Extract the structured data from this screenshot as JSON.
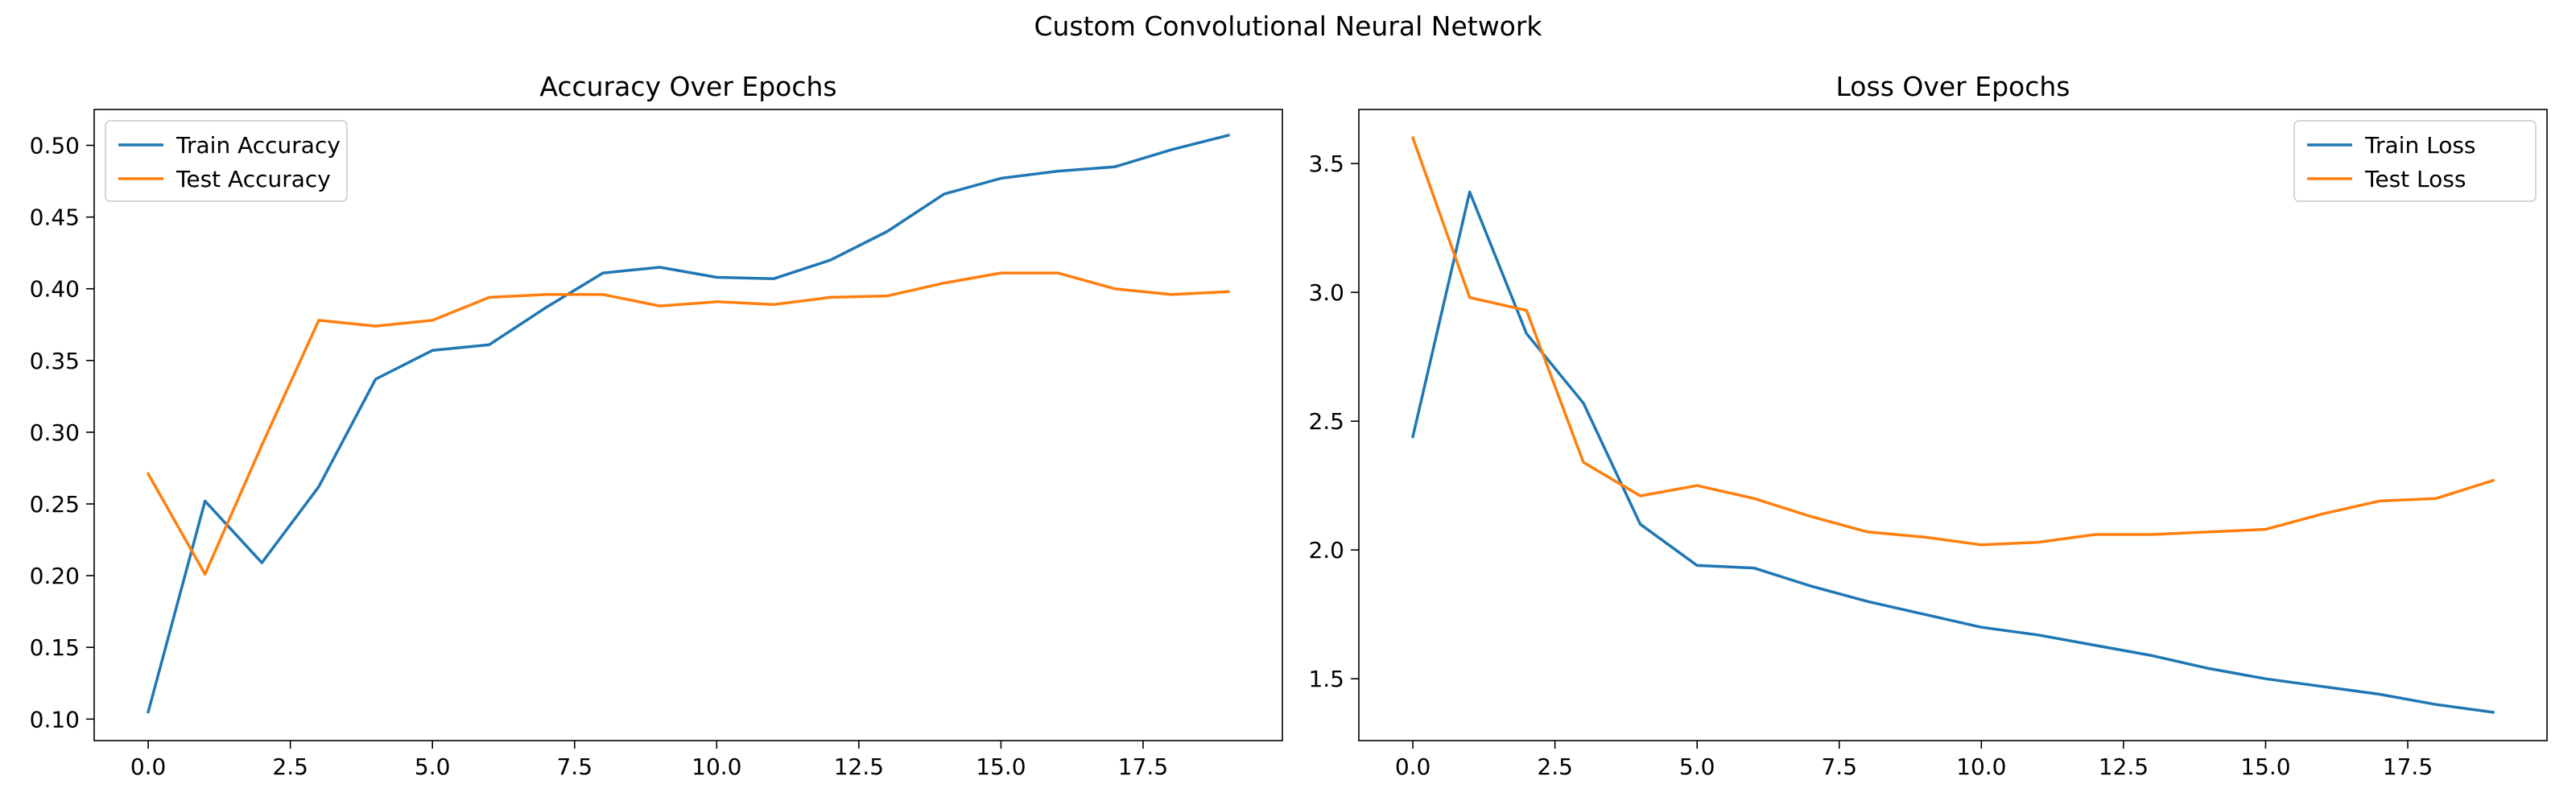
{
  "figure": {
    "title": "Custom Convolutional Neural Network"
  },
  "chart_data": [
    {
      "type": "line",
      "title": "Accuracy Over Epochs",
      "xlabel": "",
      "ylabel": "",
      "xlim": [
        -0.95,
        19.95
      ],
      "ylim": [
        0.085,
        0.525
      ],
      "xticks": [
        0.0,
        2.5,
        5.0,
        7.5,
        10.0,
        12.5,
        15.0,
        17.5
      ],
      "xtick_labels": [
        "0.0",
        "2.5",
        "5.0",
        "7.5",
        "10.0",
        "12.5",
        "15.0",
        "17.5"
      ],
      "yticks": [
        0.1,
        0.15,
        0.2,
        0.25,
        0.3,
        0.35,
        0.4,
        0.45,
        0.5
      ],
      "ytick_labels": [
        "0.10",
        "0.15",
        "0.20",
        "0.25",
        "0.30",
        "0.35",
        "0.40",
        "0.45",
        "0.50"
      ],
      "grid": false,
      "legend_position": "top-left",
      "x": [
        0,
        1,
        2,
        3,
        4,
        5,
        6,
        7,
        8,
        9,
        10,
        11,
        12,
        13,
        14,
        15,
        16,
        17,
        18,
        19
      ],
      "series": [
        {
          "name": "Train Accuracy",
          "color": "#1f77b4",
          "values": [
            0.105,
            0.252,
            0.209,
            0.262,
            0.337,
            0.357,
            0.361,
            0.387,
            0.411,
            0.415,
            0.408,
            0.407,
            0.42,
            0.44,
            0.466,
            0.477,
            0.482,
            0.485,
            0.497,
            0.507
          ]
        },
        {
          "name": "Test Accuracy",
          "color": "#ff7f0e",
          "values": [
            0.271,
            0.201,
            0.291,
            0.378,
            0.374,
            0.378,
            0.394,
            0.396,
            0.396,
            0.388,
            0.391,
            0.389,
            0.394,
            0.395,
            0.404,
            0.411,
            0.411,
            0.4,
            0.396,
            0.398
          ]
        }
      ]
    },
    {
      "type": "line",
      "title": "Loss Over Epochs",
      "xlabel": "",
      "ylabel": "",
      "xlim": [
        -0.95,
        19.95
      ],
      "ylim": [
        1.26,
        3.71
      ],
      "xticks": [
        0.0,
        2.5,
        5.0,
        7.5,
        10.0,
        12.5,
        15.0,
        17.5
      ],
      "xtick_labels": [
        "0.0",
        "2.5",
        "5.0",
        "7.5",
        "10.0",
        "12.5",
        "15.0",
        "17.5"
      ],
      "yticks": [
        1.5,
        2.0,
        2.5,
        3.0,
        3.5
      ],
      "ytick_labels": [
        "1.5",
        "2.0",
        "2.5",
        "3.0",
        "3.5"
      ],
      "grid": false,
      "legend_position": "top-right",
      "x": [
        0,
        1,
        2,
        3,
        4,
        5,
        6,
        7,
        8,
        9,
        10,
        11,
        12,
        13,
        14,
        15,
        16,
        17,
        18,
        19
      ],
      "series": [
        {
          "name": "Train Loss",
          "color": "#1f77b4",
          "values": [
            2.44,
            3.39,
            2.84,
            2.57,
            2.1,
            1.94,
            1.93,
            1.86,
            1.8,
            1.75,
            1.7,
            1.67,
            1.63,
            1.59,
            1.54,
            1.5,
            1.47,
            1.44,
            1.4,
            1.37
          ]
        },
        {
          "name": "Test Loss",
          "color": "#ff7f0e",
          "values": [
            3.6,
            2.98,
            2.93,
            2.34,
            2.21,
            2.25,
            2.2,
            2.13,
            2.07,
            2.05,
            2.02,
            2.03,
            2.06,
            2.06,
            2.07,
            2.08,
            2.14,
            2.19,
            2.2,
            2.27
          ]
        }
      ]
    }
  ]
}
